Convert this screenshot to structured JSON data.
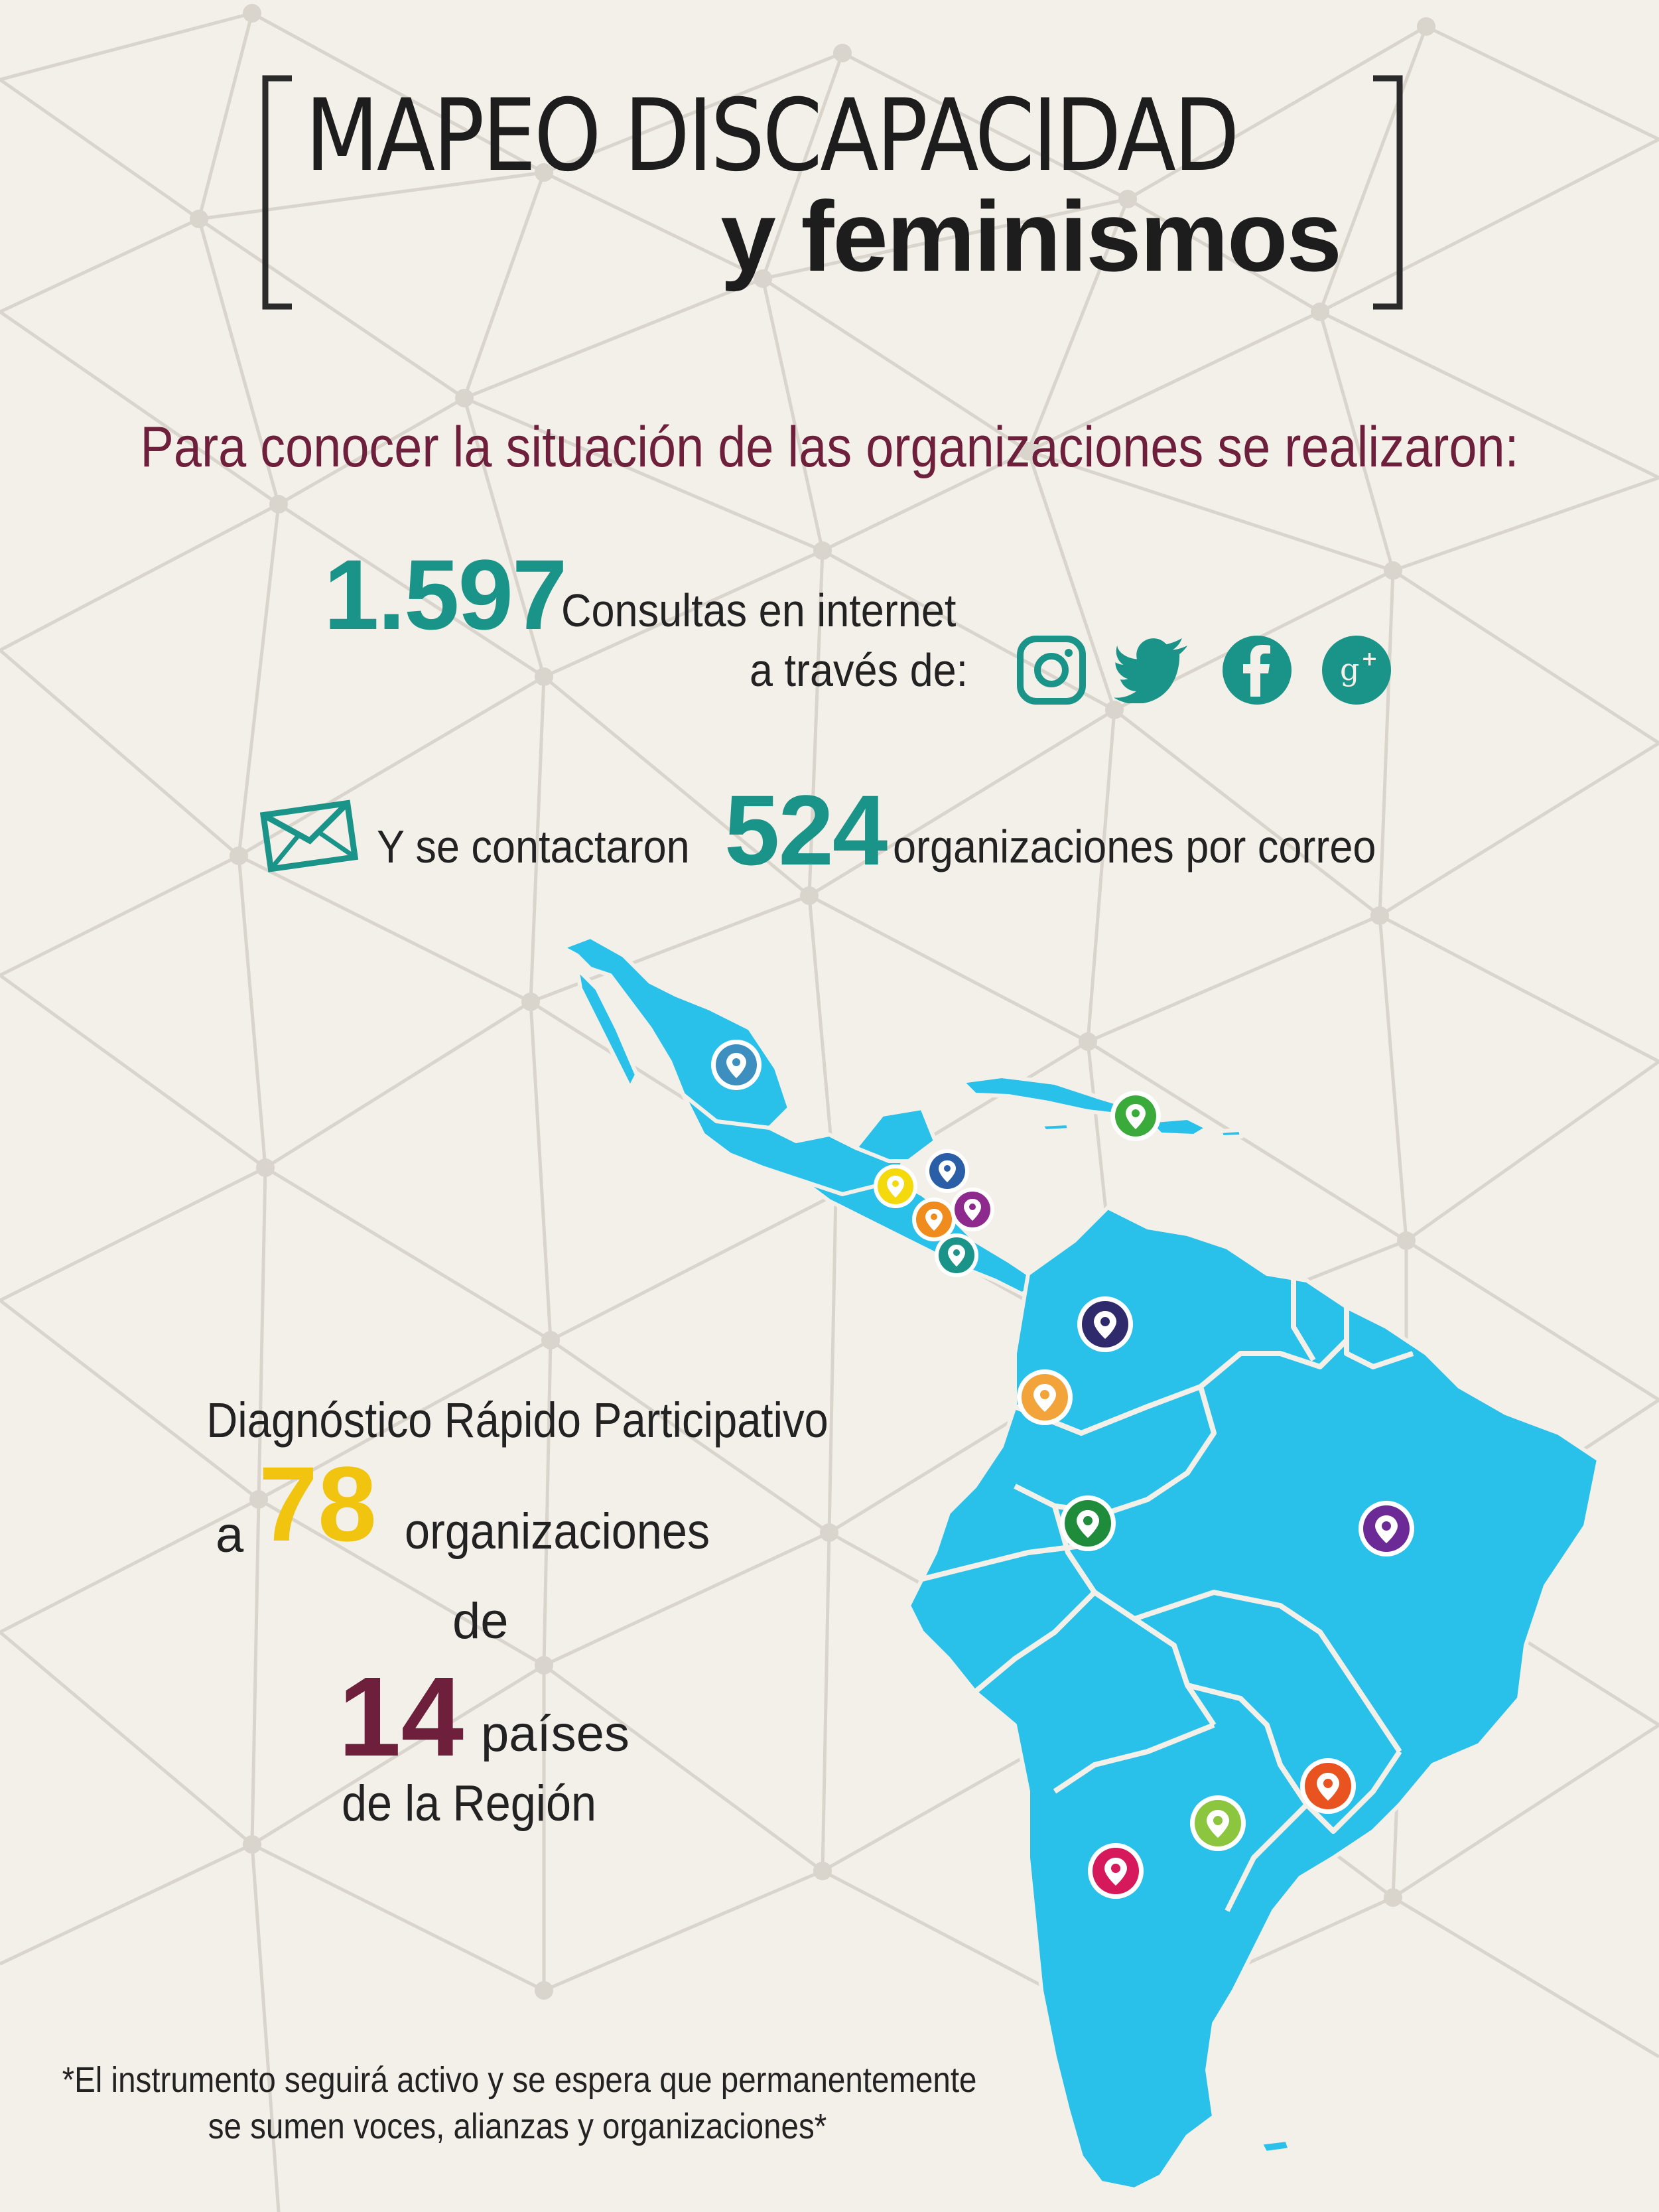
{
  "title": {
    "main": "MAPEO DISCAPACIDAD",
    "sub": "y feminismos"
  },
  "intro": "Para conocer la situación de las organizaciones se realizaron:",
  "stat_internet": {
    "number": "1.597",
    "label_line1": "Consultas en internet",
    "label_line2": "a través de:",
    "icons": [
      "instagram-icon",
      "twitter-icon",
      "facebook-icon",
      "google-plus-icon"
    ]
  },
  "stat_email": {
    "prefix": "Y se contactaron",
    "number": "524",
    "suffix": "organizaciones por correo",
    "icon": "envelope-icon"
  },
  "diagnostic": {
    "title": "Diagnóstico Rápido Participativo",
    "a": "a",
    "number": "78",
    "orgs": "organizaciones",
    "de": "de",
    "countries_number": "14",
    "countries_label": "países",
    "region": "de la Región"
  },
  "map": {
    "land_color": "#29c1ea",
    "pin_colors": [
      "#3d8fbf",
      "#3aab3a",
      "#f4d90c",
      "#2a5fa8",
      "#f08c1e",
      "#8e2a8e",
      "#1a9488",
      "#2e2a6b",
      "#f2a33a",
      "#1e8c3a",
      "#6c2a96",
      "#8cc63f",
      "#e8531f",
      "#d6195a"
    ]
  },
  "footnote": {
    "line1": "*El instrumento seguirá activo y se espera que permanentemente",
    "line2": "se sumen voces, alianzas y organizaciones*"
  },
  "colors": {
    "background": "#f3efe9",
    "teal": "#1a9488",
    "maroon": "#6d1f3b",
    "yellow": "#f1c40f"
  }
}
